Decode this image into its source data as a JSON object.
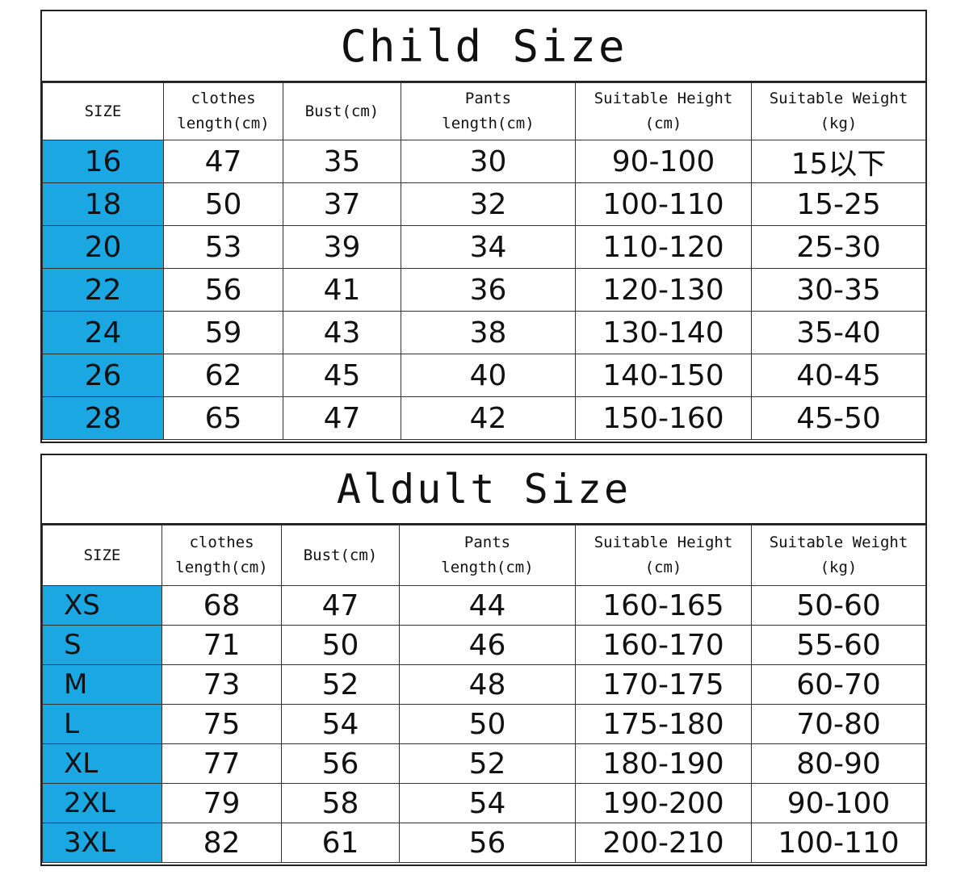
{
  "columns": {
    "size": "SIZE",
    "clothes_length": [
      "clothes",
      "length(cm)"
    ],
    "bust": "Bust(cm)",
    "pants_length": [
      "Pants",
      "length(cm)"
    ],
    "height": [
      "Suitable Height",
      "(cm)"
    ],
    "weight": [
      "Suitable Weight",
      "(kg)"
    ]
  },
  "accent_color": "#1aa7e2",
  "child": {
    "title": "Child Size",
    "rows": [
      {
        "size": "16",
        "clothes": "47",
        "bust": "35",
        "pants": "30",
        "height": "90-100",
        "weight": "15以下"
      },
      {
        "size": "18",
        "clothes": "50",
        "bust": "37",
        "pants": "32",
        "height": "100-110",
        "weight": "15-25"
      },
      {
        "size": "20",
        "clothes": "53",
        "bust": "39",
        "pants": "34",
        "height": "110-120",
        "weight": "25-30"
      },
      {
        "size": "22",
        "clothes": "56",
        "bust": "41",
        "pants": "36",
        "height": "120-130",
        "weight": "30-35"
      },
      {
        "size": "24",
        "clothes": "59",
        "bust": "43",
        "pants": "38",
        "height": "130-140",
        "weight": "35-40"
      },
      {
        "size": "26",
        "clothes": "62",
        "bust": "45",
        "pants": "40",
        "height": "140-150",
        "weight": "40-45"
      },
      {
        "size": "28",
        "clothes": "65",
        "bust": "47",
        "pants": "42",
        "height": "150-160",
        "weight": "45-50"
      }
    ]
  },
  "adult": {
    "title": "Aldult Size",
    "rows": [
      {
        "size": "XS",
        "clothes": "68",
        "bust": "47",
        "pants": "44",
        "height": "160-165",
        "weight": "50-60"
      },
      {
        "size": "S",
        "clothes": "71",
        "bust": "50",
        "pants": "46",
        "height": "160-170",
        "weight": "55-60"
      },
      {
        "size": "M",
        "clothes": "73",
        "bust": "52",
        "pants": "48",
        "height": "170-175",
        "weight": "60-70"
      },
      {
        "size": "L",
        "clothes": "75",
        "bust": "54",
        "pants": "50",
        "height": "175-180",
        "weight": "70-80"
      },
      {
        "size": "XL",
        "clothes": "77",
        "bust": "56",
        "pants": "52",
        "height": "180-190",
        "weight": "80-90"
      },
      {
        "size": "2XL",
        "clothes": "79",
        "bust": "58",
        "pants": "54",
        "height": "190-200",
        "weight": "90-100"
      },
      {
        "size": "3XL",
        "clothes": "82",
        "bust": "61",
        "pants": "56",
        "height": "200-210",
        "weight": "100-110"
      }
    ]
  }
}
